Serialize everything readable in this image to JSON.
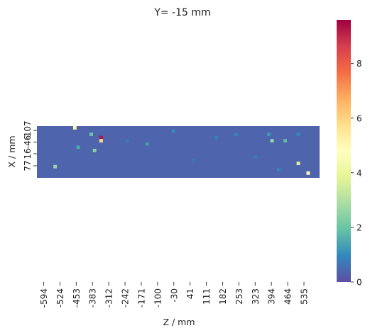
{
  "chart_data": {
    "type": "heatmap",
    "title": "Y= -15 mm",
    "xlabel": "Z / mm",
    "ylabel": "X / mm",
    "x_tick_labels": [
      "-594",
      "-524",
      "-453",
      "-383",
      "-312",
      "-242",
      "-171",
      "-100",
      "-30",
      "41",
      "111",
      "182",
      "253",
      "323",
      "394",
      "464",
      "535"
    ],
    "y_tick_labels": [
      "-107",
      "-46",
      "16",
      "77"
    ],
    "colorbar": {
      "min": 0,
      "max": 9.6,
      "ticks": [
        0,
        2,
        4,
        6,
        8
      ],
      "colormap": "Spectral_r"
    },
    "grid_size": {
      "cols": 86,
      "rows": 16
    },
    "background_value": 0.35,
    "cells": [
      {
        "col": 11,
        "row": 0,
        "value": 5.2
      },
      {
        "col": 16,
        "row": 2,
        "value": 2.0
      },
      {
        "col": 19,
        "row": 3,
        "value": 9.3
      },
      {
        "col": 19,
        "row": 4,
        "value": 5.8
      },
      {
        "col": 12,
        "row": 6,
        "value": 1.5
      },
      {
        "col": 17,
        "row": 7,
        "value": 2.4
      },
      {
        "col": 33,
        "row": 5,
        "value": 1.3
      },
      {
        "col": 41,
        "row": 1,
        "value": 1.0
      },
      {
        "col": 5,
        "row": 12,
        "value": 2.6
      },
      {
        "col": 70,
        "row": 2,
        "value": 1.2
      },
      {
        "col": 71,
        "row": 4,
        "value": 2.6
      },
      {
        "col": 75,
        "row": 4,
        "value": 1.8
      },
      {
        "col": 79,
        "row": 2,
        "value": 1.0
      },
      {
        "col": 79,
        "row": 11,
        "value": 3.6
      },
      {
        "col": 82,
        "row": 14,
        "value": 4.6
      },
      {
        "col": 73,
        "row": 13,
        "value": 0.9
      },
      {
        "col": 60,
        "row": 2,
        "value": 0.9
      },
      {
        "col": 54,
        "row": 3,
        "value": 0.8
      },
      {
        "col": 27,
        "row": 4,
        "value": 0.7
      },
      {
        "col": 47,
        "row": 10,
        "value": 0.6
      },
      {
        "col": 66,
        "row": 9,
        "value": 0.7
      }
    ]
  }
}
